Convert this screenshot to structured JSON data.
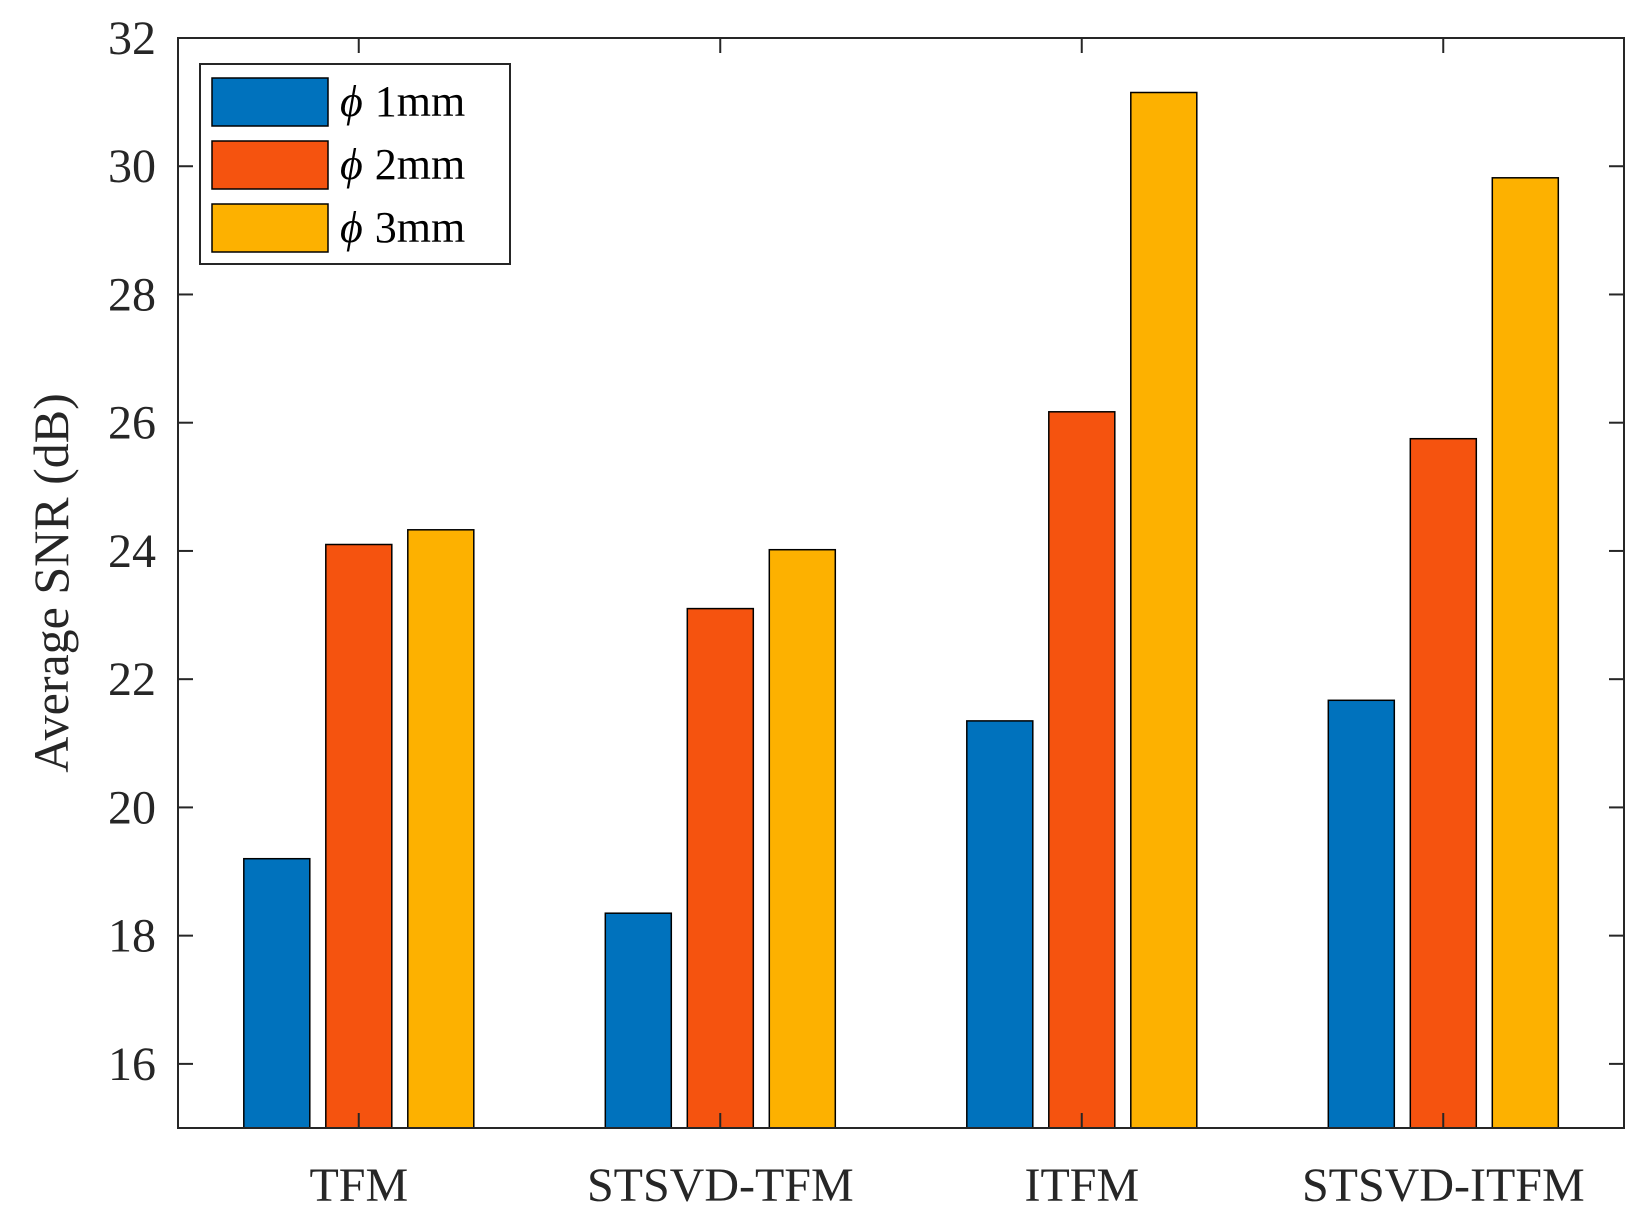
{
  "chart_data": {
    "type": "bar",
    "title": "",
    "xlabel": "",
    "ylabel": "Average SNR (dB)",
    "ylim": [
      15,
      32
    ],
    "yticks": [
      16,
      18,
      20,
      22,
      24,
      26,
      28,
      30,
      32
    ],
    "grid": false,
    "legend_position": "top-left",
    "categories": [
      "TFM",
      "STSVD-TFM",
      "ITFM",
      "STSVD-ITFM"
    ],
    "series": [
      {
        "name": "1mm",
        "symbol": "ϕ",
        "color": "#0072BD",
        "values": [
          19.2,
          18.35,
          21.35,
          21.67
        ]
      },
      {
        "name": "2mm",
        "symbol": "ϕ",
        "color": "#F5530F",
        "values": [
          24.1,
          23.1,
          26.17,
          25.75
        ]
      },
      {
        "name": "3mm",
        "symbol": "ϕ",
        "color": "#FDB100",
        "values": [
          24.33,
          24.02,
          31.15,
          29.82
        ]
      }
    ]
  }
}
